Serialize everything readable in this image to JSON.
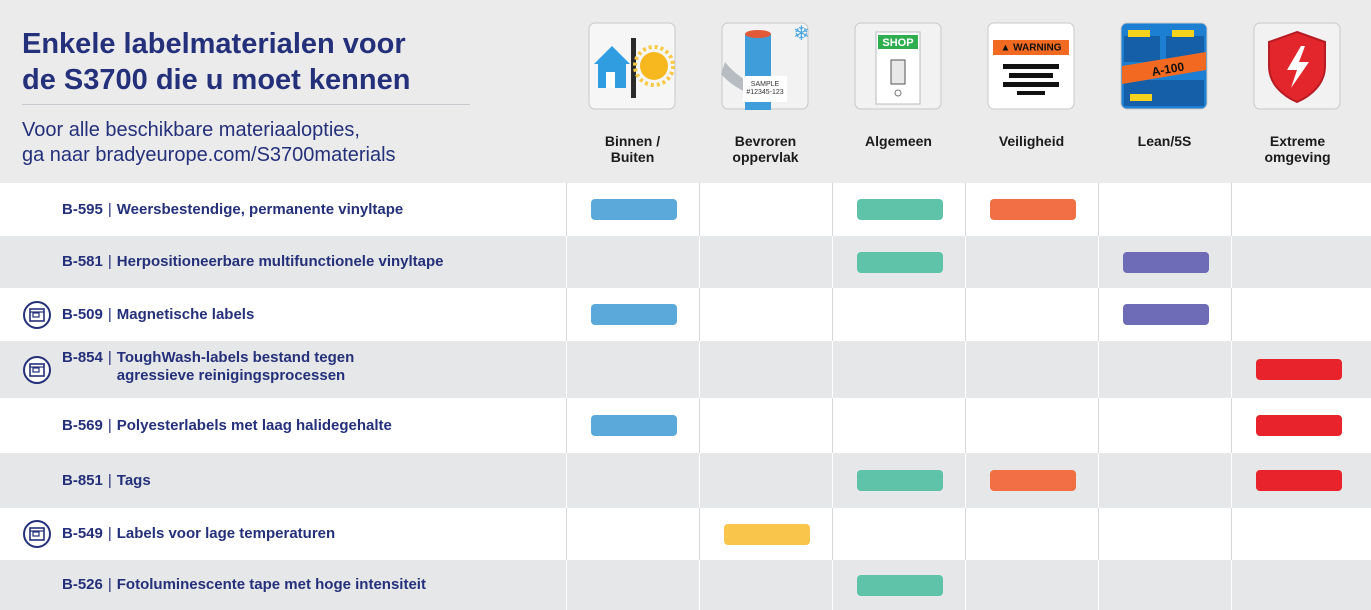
{
  "header": {
    "title": "Enkele labelmaterialen voor\nde S3700 die u moet kennen",
    "subtitle": "Voor alle beschikbare materiaalopties,\nga naar bradyeurope.com/S3700materials"
  },
  "columns": [
    {
      "label": "Binnen /\nBuiten",
      "color": "#5ba8db"
    },
    {
      "label": "Bevroren\noppervlak",
      "color": "#f9c54b",
      "icon_text": "SAMPLE\n#12345-123"
    },
    {
      "label": "Algemeen",
      "color": "#5fc3a9",
      "icon_text": "SHOP"
    },
    {
      "label": "Veiligheid",
      "color": "#f26f45",
      "icon_text": "▲ WARNING"
    },
    {
      "label": "Lean/5S",
      "color": "#6e6cb6",
      "icon_text": "A-100"
    },
    {
      "label": "Extreme\nomgeving",
      "color": "#e8232b"
    }
  ],
  "separator": "|",
  "rows": [
    {
      "code": "B-595",
      "name": "Weersbestendige, permanente vinyltape",
      "icon": false,
      "uses": [
        true,
        false,
        true,
        true,
        false,
        false
      ]
    },
    {
      "code": "B-581",
      "name": "Herpositioneerbare multifunctionele vinyltape",
      "icon": false,
      "uses": [
        false,
        false,
        true,
        false,
        true,
        false
      ]
    },
    {
      "code": "B-509",
      "name": "Magnetische labels",
      "icon": true,
      "uses": [
        true,
        false,
        false,
        false,
        true,
        false
      ]
    },
    {
      "code": "B-854",
      "name": "ToughWash-labels bestand tegen\nagressieve reinigingsprocessen",
      "icon": true,
      "uses": [
        false,
        false,
        false,
        false,
        false,
        true
      ]
    },
    {
      "code": "B-569",
      "name": "Polyesterlabels met laag halidegehalte",
      "icon": false,
      "uses": [
        true,
        false,
        false,
        false,
        false,
        true
      ]
    },
    {
      "code": "B-851",
      "name": "Tags",
      "icon": false,
      "uses": [
        false,
        false,
        true,
        true,
        false,
        true
      ]
    },
    {
      "code": "B-549",
      "name": "Labels voor lage temperaturen",
      "icon": true,
      "uses": [
        false,
        true,
        false,
        false,
        false,
        false
      ]
    },
    {
      "code": "B-526",
      "name": "Fotoluminescente tape met hoge intensiteit",
      "icon": false,
      "uses": [
        false,
        false,
        true,
        false,
        false,
        false
      ]
    }
  ]
}
